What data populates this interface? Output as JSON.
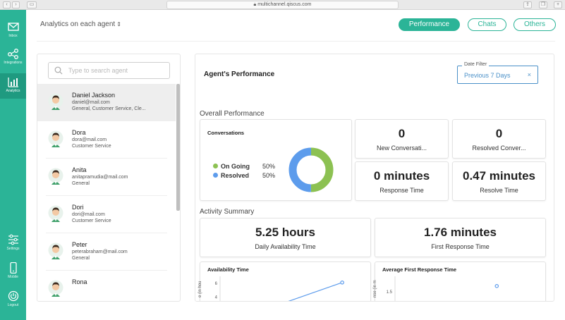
{
  "browser": {
    "url": "multichannel.qiscus.com"
  },
  "sidebar": {
    "items": [
      {
        "label": "Inbox",
        "icon": "mail-icon"
      },
      {
        "label": "Integrations",
        "icon": "share-icon"
      },
      {
        "label": "Analytics",
        "icon": "analytics-icon"
      },
      {
        "label": "Settings",
        "icon": "sliders-icon"
      },
      {
        "label": "Mobile",
        "icon": "mobile-icon"
      },
      {
        "label": "Logout",
        "icon": "power-icon"
      }
    ]
  },
  "header": {
    "analytics_select": "Analytics on each agent",
    "tabs": [
      {
        "label": "Performance",
        "active": true
      },
      {
        "label": "Chats",
        "active": false
      },
      {
        "label": "Others",
        "active": false
      }
    ]
  },
  "agents": {
    "search_placeholder": "Type to search agent",
    "list": [
      {
        "name": "Daniel Jackson",
        "email": "daniel@mail.com",
        "division": "General, Customer Service, Cle...",
        "selected": true
      },
      {
        "name": "Dora",
        "email": "dora@mail.com",
        "division": "Customer Service",
        "selected": false
      },
      {
        "name": "Anita",
        "email": "anitapramudia@mail.com",
        "division": "General",
        "selected": false
      },
      {
        "name": "Dori",
        "email": "dori@mail.com",
        "division": "Customer Service",
        "selected": false
      },
      {
        "name": "Peter",
        "email": "peterabraham@mail.com",
        "division": "General",
        "selected": false
      },
      {
        "name": "Rona",
        "email": "",
        "division": "",
        "selected": false
      }
    ]
  },
  "performance": {
    "title": "Agent's Performance",
    "date_filter": {
      "legend": "Date Filter",
      "value": "Previous 7 Days",
      "clear": "×"
    },
    "overall_title": "Overall Performance",
    "conversations": {
      "title": "Conversations",
      "ongoing_label": "On Going",
      "ongoing_pct": "50%",
      "resolved_label": "Resolved",
      "resolved_pct": "50%",
      "ongoing_color": "#8cc152",
      "resolved_color": "#5d9cec"
    },
    "stats": [
      {
        "value": "0",
        "caption": "New Conversati..."
      },
      {
        "value": "0",
        "caption": "Resolved Conver..."
      },
      {
        "value": "0 minutes",
        "caption": "Response Time"
      },
      {
        "value": "0.47 minutes",
        "caption": "Resolve Time"
      }
    ],
    "activity_title": "Activity Summary",
    "activity": [
      {
        "value": "5.25 hours",
        "caption": "Daily Availability Time"
      },
      {
        "value": "1.76 minutes",
        "caption": "First Response Time"
      }
    ]
  },
  "chart_data": [
    {
      "type": "line",
      "title": "Availability Time",
      "ylabel": "e (in hou",
      "y_ticks": [
        "6",
        "4"
      ],
      "points": [
        {
          "x": 3,
          "y": 3.0
        },
        {
          "x": 6,
          "y": 6.1
        }
      ]
    },
    {
      "type": "scatter",
      "title": "Average First Response Time",
      "ylabel": "nse (in m",
      "y_ticks": [
        "1.5",
        "1"
      ],
      "points": [
        {
          "x": 5,
          "y": 1.76
        }
      ]
    }
  ]
}
